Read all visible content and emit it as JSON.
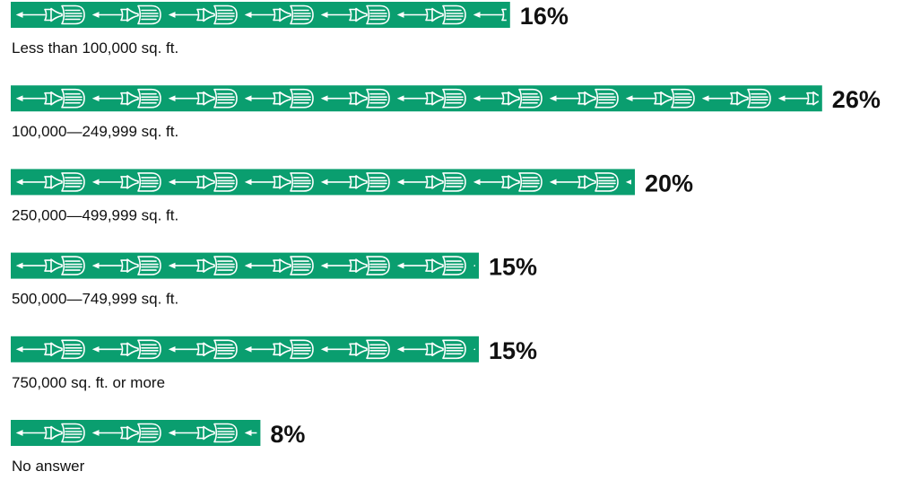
{
  "chart_data": {
    "type": "bar",
    "orientation": "horizontal",
    "pictograph_icon": "screwdriver-icon",
    "bar_color": "#0a9e6f",
    "icon_color": "#ffffff",
    "text_color": "#111111",
    "categories": [
      "Less than 100,000 sq. ft.",
      "100,000—249,999 sq. ft.",
      "250,000—499,999 sq. ft.",
      "500,000—749,999 sq. ft.",
      "750,000 sq. ft. or more",
      "No answer"
    ],
    "values": [
      16,
      26,
      20,
      15,
      15,
      8
    ],
    "value_labels": [
      "16%",
      "26%",
      "20%",
      "15%",
      "15%",
      "8%"
    ],
    "unit": "%",
    "xlim": [
      0,
      26
    ],
    "grid": false,
    "legend": "none"
  }
}
